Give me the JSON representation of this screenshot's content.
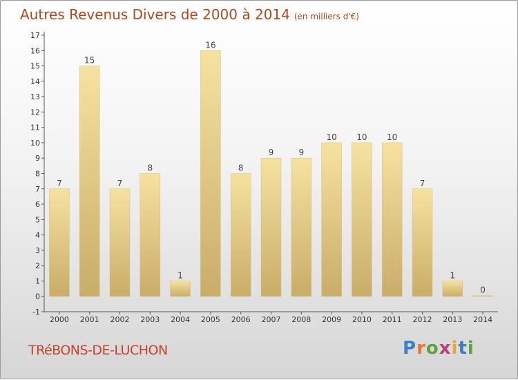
{
  "header": {
    "title": "Autres Revenus Divers de 2000 à 2014",
    "subtitle": "(en milliers d'€)"
  },
  "footer": {
    "place": "TRéBONS-DE-LUCHON",
    "logo": "Proxiti"
  },
  "colors": {
    "title": "#b5451b",
    "bar_light": "#f6e2a0",
    "bar_dark": "#c8ad68",
    "logo": [
      "#3b7fc4",
      "#e8772a",
      "#5aa33a",
      "#c23b7a",
      "#e8a82a",
      "#3b7fc4",
      "#5aa33a"
    ]
  },
  "chart_data": {
    "type": "bar",
    "title": "Autres Revenus Divers de 2000 à 2014",
    "subtitle": "(en milliers d'€)",
    "categories": [
      "2000",
      "2001",
      "2002",
      "2003",
      "2004",
      "2005",
      "2006",
      "2007",
      "2008",
      "2009",
      "2010",
      "2011",
      "2012",
      "2013",
      "2014"
    ],
    "values": [
      7,
      15,
      7,
      8,
      1,
      16,
      8,
      9,
      9,
      10,
      10,
      10,
      7,
      1,
      0
    ],
    "ylim": [
      -1,
      17
    ],
    "yticks": [
      -1,
      0,
      1,
      2,
      3,
      4,
      5,
      6,
      7,
      8,
      9,
      10,
      11,
      12,
      13,
      14,
      15,
      16,
      17
    ],
    "grid": false,
    "data_labels": true
  }
}
